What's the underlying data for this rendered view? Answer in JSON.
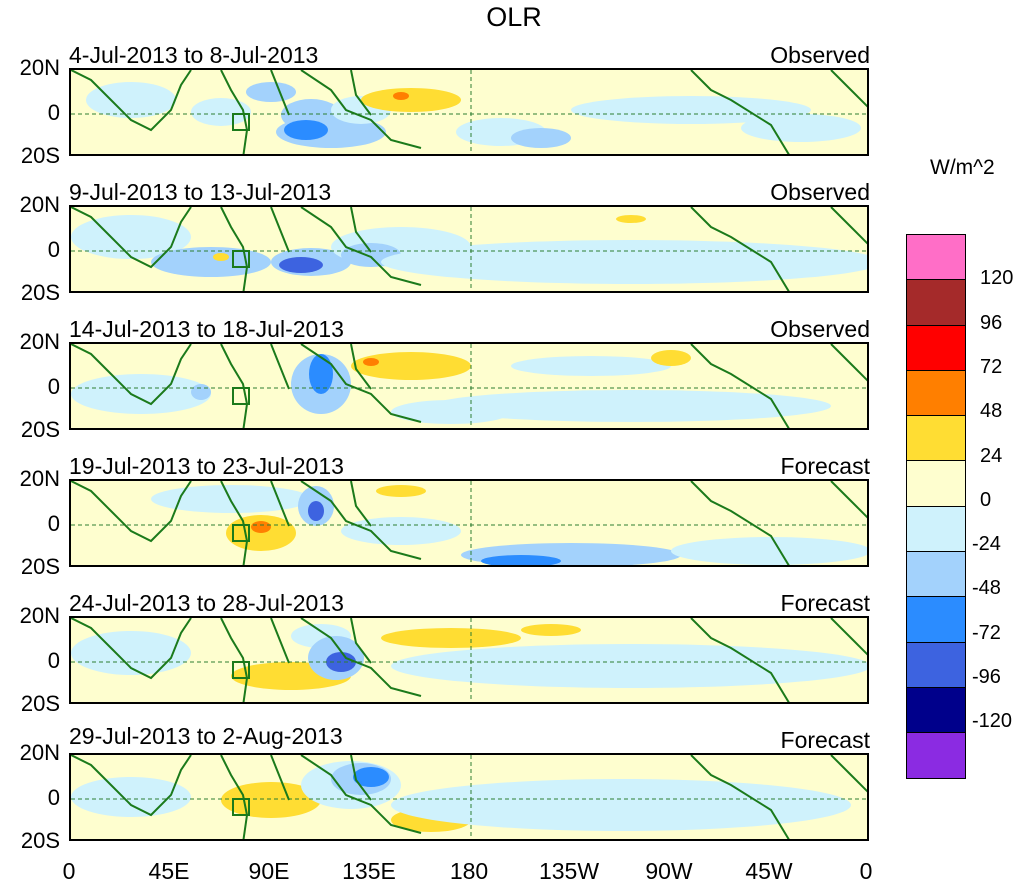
{
  "title": "OLR",
  "units": "W/m^2",
  "panels": [
    {
      "dates": "4-Jul-2013 to 8-Jul-2013",
      "type": "Observed"
    },
    {
      "dates": "9-Jul-2013 to 13-Jul-2013",
      "type": "Observed"
    },
    {
      "dates": "14-Jul-2013 to 18-Jul-2013",
      "type": "Observed"
    },
    {
      "dates": "19-Jul-2013 to 23-Jul-2013",
      "type": "Forecast"
    },
    {
      "dates": "24-Jul-2013 to 28-Jul-2013",
      "type": "Forecast"
    },
    {
      "dates": "29-Jul-2013 to 2-Aug-2013",
      "type": "Forecast"
    }
  ],
  "lat_labels": [
    "20N",
    "0",
    "20S"
  ],
  "lon_labels": [
    "0",
    "45E",
    "90E",
    "135E",
    "180",
    "135W",
    "90W",
    "45W",
    "0"
  ],
  "colorbar": {
    "colors": [
      "#ff6ec7",
      "#a52a2a",
      "#ff0000",
      "#ff7f00",
      "#ffdd33",
      "#fefecf",
      "#cff2fc",
      "#a3d2fc",
      "#2b8cff",
      "#3d63e0",
      "#00008b",
      "#8b2be2"
    ],
    "labels": [
      "120",
      "96",
      "72",
      "48",
      "24",
      "0",
      "-24",
      "-48",
      "-72",
      "-96",
      "-120"
    ]
  }
}
